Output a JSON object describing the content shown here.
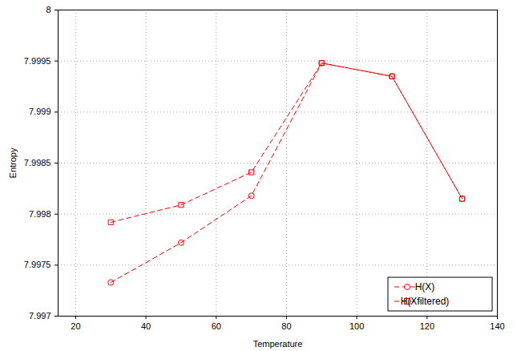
{
  "chart_data": {
    "type": "line",
    "x_label": "Temperature",
    "y_label": "Entropy",
    "xlim": [
      15,
      140
    ],
    "xticks": [
      20,
      40,
      60,
      80,
      100,
      120,
      140
    ],
    "ylim": [
      7.997,
      8
    ],
    "yticks": [
      7.997,
      7.9975,
      7.998,
      7.9985,
      7.999,
      7.9995,
      8
    ],
    "grid": true,
    "legend": "bottom-right",
    "x": [
      30,
      50,
      70,
      90,
      110,
      130
    ],
    "series": [
      {
        "name": "H(X)",
        "color": "#ff0000",
        "marker": "circle",
        "line_style": "dashed",
        "values": [
          7.99733,
          7.99772,
          7.99818,
          7.99948,
          7.99935,
          7.99815
        ]
      },
      {
        "name": "H(Xfiltered)",
        "color": "#ff0000",
        "marker": "square",
        "line_style": "dashed",
        "values": [
          7.99792,
          7.99809,
          7.99841,
          7.99948,
          7.99935,
          7.99815
        ]
      }
    ]
  }
}
